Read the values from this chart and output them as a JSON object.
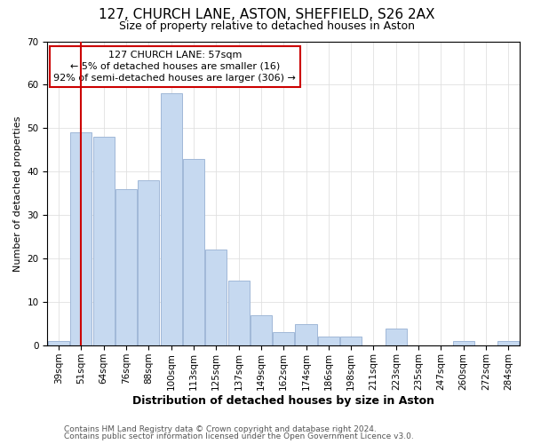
{
  "title": "127, CHURCH LANE, ASTON, SHEFFIELD, S26 2AX",
  "subtitle": "Size of property relative to detached houses in Aston",
  "xlabel": "Distribution of detached houses by size in Aston",
  "ylabel": "Number of detached properties",
  "bar_labels": [
    "39sqm",
    "51sqm",
    "64sqm",
    "76sqm",
    "88sqm",
    "100sqm",
    "113sqm",
    "125sqm",
    "137sqm",
    "149sqm",
    "162sqm",
    "174sqm",
    "186sqm",
    "198sqm",
    "211sqm",
    "223sqm",
    "235sqm",
    "247sqm",
    "260sqm",
    "272sqm",
    "284sqm"
  ],
  "bar_heights": [
    1,
    49,
    48,
    36,
    38,
    58,
    43,
    22,
    15,
    7,
    3,
    5,
    2,
    2,
    0,
    4,
    0,
    0,
    1,
    0,
    1
  ],
  "bar_color": "#c6d9f0",
  "bar_edge_color": "#a0b8d8",
  "vline_x": 1,
  "vline_color": "#cc0000",
  "ylim": [
    0,
    70
  ],
  "yticks": [
    0,
    10,
    20,
    30,
    40,
    50,
    60,
    70
  ],
  "annotation_title": "127 CHURCH LANE: 57sqm",
  "annotation_line1": "← 5% of detached houses are smaller (16)",
  "annotation_line2": "92% of semi-detached houses are larger (306) →",
  "annotation_box_color": "#ffffff",
  "annotation_box_edge": "#cc0000",
  "footer1": "Contains HM Land Registry data © Crown copyright and database right 2024.",
  "footer2": "Contains public sector information licensed under the Open Government Licence v3.0.",
  "title_fontsize": 11,
  "subtitle_fontsize": 9,
  "xlabel_fontsize": 9,
  "ylabel_fontsize": 8,
  "tick_fontsize": 7.5,
  "annotation_fontsize": 8,
  "footer_fontsize": 6.5
}
